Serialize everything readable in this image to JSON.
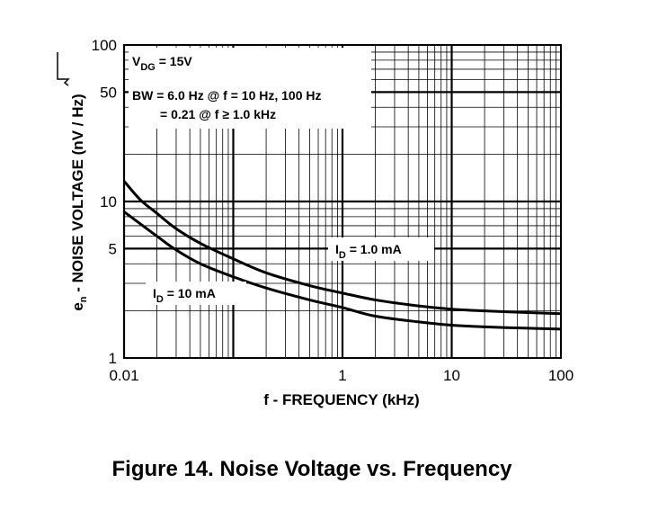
{
  "figure_caption": "Figure 14. Noise Voltage vs. Frequency",
  "chart_data": {
    "type": "line",
    "xscale": "log",
    "yscale": "log",
    "xlim": [
      0.01,
      100
    ],
    "ylim": [
      1,
      100
    ],
    "xlabel": "f - FREQUENCY (kHz)",
    "ylabel": {
      "main": "e",
      "main_sub": "n",
      "rest": " - NOISE VOLTAGE (nV / ",
      "sqrt_arg": "Hz",
      "close": ")"
    },
    "x_ticks": [
      {
        "value": 0.01,
        "label": "0.01"
      },
      {
        "value": 1,
        "label": "1"
      },
      {
        "value": 10,
        "label": "10"
      },
      {
        "value": 100,
        "label": "100"
      }
    ],
    "y_ticks": [
      {
        "value": 1,
        "label": "1"
      },
      {
        "value": 5,
        "label": "5"
      },
      {
        "value": 10,
        "label": "10"
      },
      {
        "value": 50,
        "label": "50"
      },
      {
        "value": 100,
        "label": "100"
      }
    ],
    "grid": true,
    "annotations": {
      "vdg": {
        "main": "V",
        "sub": "DG",
        "rest": " = 15V"
      },
      "bw_line1": "BW = 6.0 Hz @ f = 10 Hz, 100 Hz",
      "bw_line2": "= 0.21 @ f ≥ 1.0 kHz"
    },
    "series": [
      {
        "name": "I_D = 1.0 mA",
        "label": {
          "main": "I",
          "sub": "D",
          "rest": " = 1.0 mA"
        },
        "x": [
          0.01,
          0.014,
          0.02,
          0.03,
          0.05,
          0.1,
          0.2,
          0.5,
          1,
          2,
          5,
          10,
          20,
          50,
          100
        ],
        "y": [
          13.5,
          10.3,
          8.4,
          6.7,
          5.4,
          4.3,
          3.5,
          2.9,
          2.6,
          2.35,
          2.15,
          2.05,
          2.0,
          1.95,
          1.92
        ]
      },
      {
        "name": "I_D = 10 mA",
        "label": {
          "main": "I",
          "sub": "D",
          "rest": " = 10 mA"
        },
        "x": [
          0.01,
          0.02,
          0.03,
          0.05,
          0.1,
          0.2,
          0.5,
          1,
          2,
          5,
          10,
          20,
          50,
          100
        ],
        "y": [
          8.6,
          6.0,
          4.9,
          4.0,
          3.3,
          2.8,
          2.35,
          2.1,
          1.85,
          1.7,
          1.62,
          1.58,
          1.55,
          1.53
        ]
      }
    ]
  }
}
